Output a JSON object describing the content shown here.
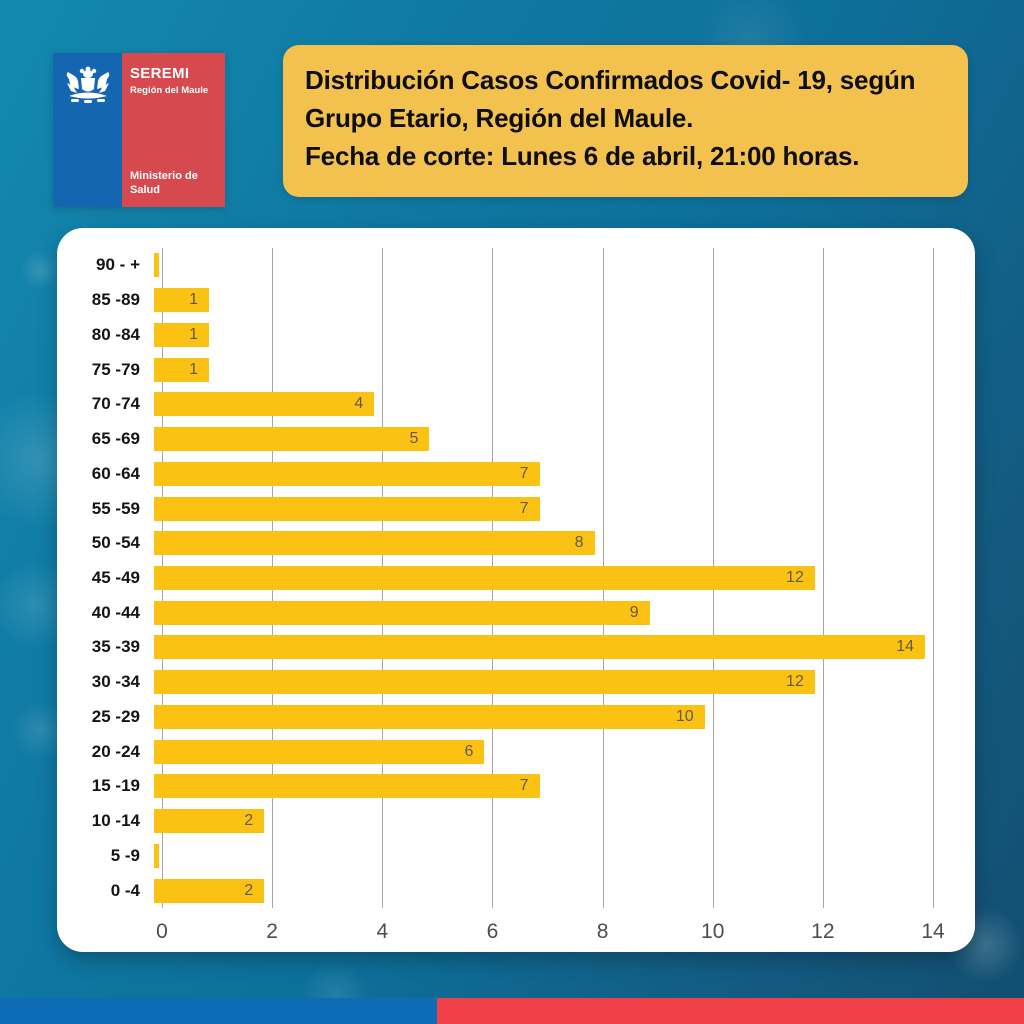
{
  "header": {
    "logo": {
      "seremi": "SEREMI",
      "region": "Región del Maule",
      "ministry_line1": "Ministerio de",
      "ministry_line2": "Salud",
      "blue_color": "#1566b1",
      "red_color": "#d5494f",
      "emblem": "chile-coat-of-arms-icon"
    },
    "title_bg_color": "#f2c14e",
    "title_lines": [
      "Distribución  Casos Confirmados Covid- 19, según",
      "Grupo Etario, Región del Maule.",
      "Fecha de corte: Lunes 6 de abril, 21:00 horas."
    ]
  },
  "chart_data": {
    "type": "bar",
    "orientation": "horizontal",
    "title": "Distribución Casos Confirmados Covid-19, según Grupo Etario, Región del Maule",
    "categories": [
      "90 - +",
      "85 -89",
      "80 -84",
      "75 -79",
      "70 -74",
      "65 -69",
      "60 -64",
      "55 -59",
      "50 -54",
      "45 -49",
      "40 -44",
      "35 -39",
      "30 -34",
      "25 -29",
      "20 -24",
      "15 -19",
      "10 -14",
      "5 -9",
      "0 -4"
    ],
    "values": [
      0,
      1,
      1,
      1,
      4,
      5,
      7,
      7,
      8,
      12,
      9,
      14,
      12,
      10,
      6,
      7,
      2,
      0,
      2
    ],
    "data_labels": [
      "",
      "1",
      "1",
      "1",
      "4",
      "5",
      "7",
      "7",
      "8",
      "12",
      "9",
      "14",
      "12",
      "10",
      "6",
      "7",
      "2",
      "",
      "2"
    ],
    "xlabel": "",
    "ylabel": "",
    "xlim": [
      0,
      14
    ],
    "x_ticks": [
      "0",
      "2",
      "4",
      "6",
      "8",
      "10",
      "12",
      "14"
    ],
    "grid": true,
    "legend": false,
    "bar_color": "#fcc213",
    "gridline_color": "#a6a6a6",
    "background": "#ffffff"
  },
  "footer": {
    "stripe_blue_color": "#0e6cb6",
    "stripe_red_color": "#ee4046"
  }
}
